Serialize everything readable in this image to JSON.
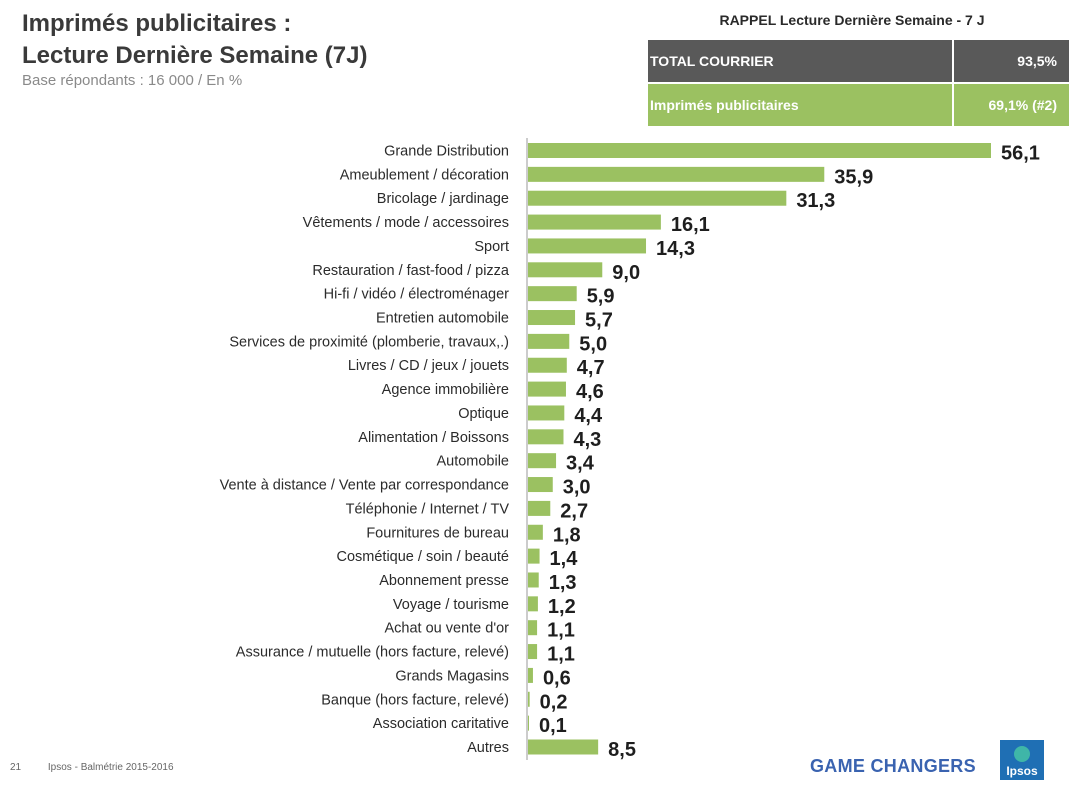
{
  "header": {
    "title_line1": "Imprimés publicitaires :",
    "title_line2": "Lecture Dernière Semaine (7J)",
    "subtitle": "Base  répondants : 16 000 / En %"
  },
  "rappel": {
    "heading": "RAPPEL   Lecture Dernière Semaine  - 7 J",
    "rows": [
      {
        "label": "TOTAL COURRIER",
        "value": "93,5%"
      },
      {
        "label": "Imprimés publicitaires",
        "value": "69,1% (#2)"
      }
    ],
    "colors": {
      "dark": "#595959",
      "green": "#9bc161"
    }
  },
  "chart_data": {
    "type": "bar",
    "orientation": "horizontal",
    "bar_color": "#9bc161",
    "xlim": [
      0,
      60
    ],
    "categories": [
      "Grande Distribution",
      "Ameublement / décoration",
      "Bricolage / jardinage",
      "Vêtements / mode / accessoires",
      "Sport",
      "Restauration / fast-food / pizza",
      "Hi-fi / vidéo / électroménager",
      "Entretien automobile",
      "Services de proximité (plomberie, travaux,.)",
      "Livres / CD / jeux / jouets",
      "Agence immobilière",
      "Optique",
      "Alimentation / Boissons",
      "Automobile",
      "Vente à distance / Vente par correspondance",
      "Téléphonie / Internet / TV",
      "Fournitures de bureau",
      "Cosmétique / soin / beauté",
      "Abonnement presse",
      "Voyage / tourisme",
      "Achat ou vente d'or",
      "Assurance / mutuelle (hors facture, relevé)",
      "Grands Magasins",
      "Banque (hors facture, relevé)",
      "Association caritative",
      "Autres"
    ],
    "values": [
      56.1,
      35.9,
      31.3,
      16.1,
      14.3,
      9.0,
      5.9,
      5.7,
      5.0,
      4.7,
      4.6,
      4.4,
      4.3,
      3.4,
      3.0,
      2.7,
      1.8,
      1.4,
      1.3,
      1.2,
      1.1,
      1.1,
      0.6,
      0.2,
      0.1,
      8.5
    ],
    "value_labels": [
      "56,1",
      "35,9",
      "31,3",
      "16,1",
      "14,3",
      "9,0",
      "5,9",
      "5,7",
      "5,0",
      "4,7",
      "4,6",
      "4,4",
      "4,3",
      "3,4",
      "3,0",
      "2,7",
      "1,8",
      "1,4",
      "1,3",
      "1,2",
      "1,1",
      "1,1",
      "0,6",
      "0,2",
      "0,1",
      "8,5"
    ]
  },
  "footer": {
    "page_number": "21",
    "source": "Ipsos - Balmétrie 2015-2016",
    "tagline": "GAME CHANGERS",
    "logo_text": "Ipsos"
  }
}
